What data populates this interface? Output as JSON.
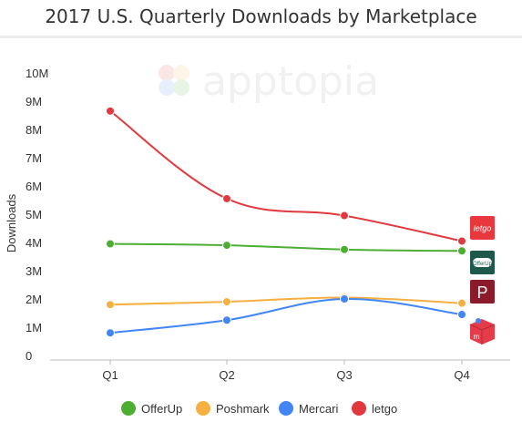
{
  "chart_data": {
    "type": "line",
    "title": "2017 U.S. Quarterly Downloads by Marketplace",
    "xlabel": "",
    "ylabel": "Downloads",
    "categories": [
      "Q1",
      "Q2",
      "Q3",
      "Q4"
    ],
    "ylim": [
      0,
      10000000
    ],
    "yticks": [
      {
        "value": 0,
        "label": "0"
      },
      {
        "value": 1000000,
        "label": "1M"
      },
      {
        "value": 2000000,
        "label": "2M"
      },
      {
        "value": 3000000,
        "label": "3M"
      },
      {
        "value": 4000000,
        "label": "4M"
      },
      {
        "value": 5000000,
        "label": "5M"
      },
      {
        "value": 6000000,
        "label": "6M"
      },
      {
        "value": 7000000,
        "label": "7M"
      },
      {
        "value": 8000000,
        "label": "8M"
      },
      {
        "value": 9000000,
        "label": "9M"
      },
      {
        "value": 10000000,
        "label": "10M"
      }
    ],
    "grid": false,
    "legend": "bottom",
    "smooth": true,
    "series": [
      {
        "name": "OfferUp",
        "color": "#4caf33",
        "values": [
          3950000,
          3900000,
          3750000,
          3700000
        ]
      },
      {
        "name": "Poshmark",
        "color": "#f5b041",
        "values": [
          1800000,
          1900000,
          2050000,
          1850000
        ]
      },
      {
        "name": "Mercari",
        "color": "#4285f4",
        "values": [
          800000,
          1250000,
          2000000,
          1450000
        ]
      },
      {
        "name": "letgo",
        "color": "#e0393e",
        "values": [
          8650000,
          5550000,
          4950000,
          4050000
        ]
      }
    ]
  },
  "watermark": "apptopia",
  "app_badges": [
    {
      "name": "letgo-app-icon",
      "text": "letgo",
      "color": "#e8383d"
    },
    {
      "name": "offerup-app-icon",
      "text": "OfferUp",
      "color": "#1e5a4c"
    },
    {
      "name": "poshmark-app-icon",
      "text": "P",
      "color": "#8b1a2b"
    },
    {
      "name": "mercari-app-icon",
      "text": "m",
      "color": "#e63c4a"
    }
  ]
}
